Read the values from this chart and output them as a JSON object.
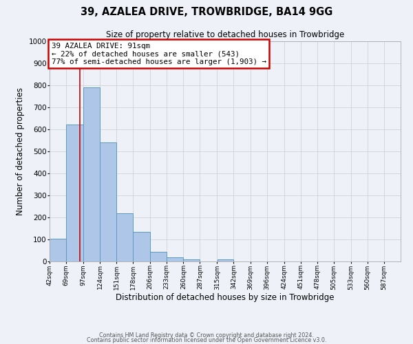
{
  "title": "39, AZALEA DRIVE, TROWBRIDGE, BA14 9GG",
  "subtitle": "Size of property relative to detached houses in Trowbridge",
  "xlabel": "Distribution of detached houses by size in Trowbridge",
  "ylabel": "Number of detached properties",
  "bin_labels": [
    "42sqm",
    "69sqm",
    "97sqm",
    "124sqm",
    "151sqm",
    "178sqm",
    "206sqm",
    "233sqm",
    "260sqm",
    "287sqm",
    "315sqm",
    "342sqm",
    "369sqm",
    "396sqm",
    "424sqm",
    "451sqm",
    "478sqm",
    "505sqm",
    "533sqm",
    "560sqm",
    "587sqm"
  ],
  "bar_heights": [
    103,
    623,
    790,
    540,
    220,
    135,
    45,
    18,
    10,
    0,
    10,
    0,
    0,
    0,
    0,
    0,
    0,
    0,
    0,
    0,
    0
  ],
  "bar_color": "#aec6e8",
  "bar_edge_color": "#5a9abf",
  "property_line_x": 91,
  "bin_edges": [
    42,
    69,
    97,
    124,
    151,
    178,
    206,
    233,
    260,
    287,
    315,
    342,
    369,
    396,
    424,
    451,
    478,
    505,
    533,
    560,
    587,
    614
  ],
  "ylim": [
    0,
    1000
  ],
  "yticks": [
    0,
    100,
    200,
    300,
    400,
    500,
    600,
    700,
    800,
    900,
    1000
  ],
  "annotation_title": "39 AZALEA DRIVE: 91sqm",
  "annotation_line1": "← 22% of detached houses are smaller (543)",
  "annotation_line2": "77% of semi-detached houses are larger (1,903) →",
  "annotation_box_color": "#ffffff",
  "annotation_box_edge_color": "#cc0000",
  "vline_color": "#cc0000",
  "grid_color": "#cccccc",
  "background_color": "#eef2f8",
  "footer_line1": "Contains HM Land Registry data © Crown copyright and database right 2024.",
  "footer_line2": "Contains public sector information licensed under the Open Government Licence v3.0."
}
